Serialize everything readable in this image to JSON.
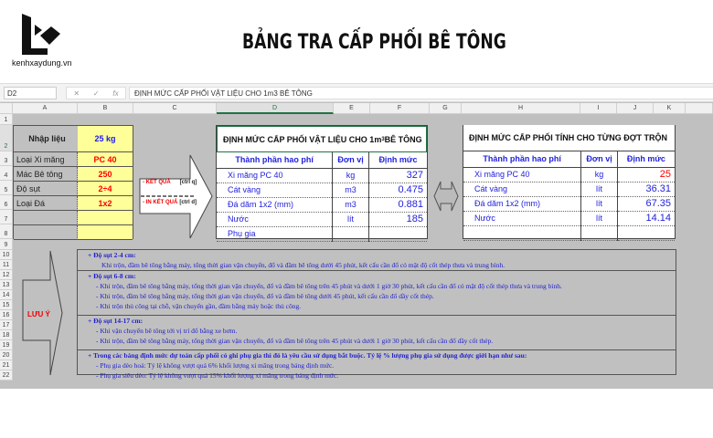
{
  "brand": {
    "site": "kenhxaydung.vn"
  },
  "page_title": "BẢNG TRA CẤP PHỐI BÊ TÔNG",
  "formula_bar": {
    "name_box": "D2",
    "cancel": "✕",
    "confirm": "✓",
    "fx": "fx",
    "formula": "ĐỊNH MỨC CẤP PHỐI VẬT LIỆU CHO 1m3 BÊ TÔNG"
  },
  "columns": [
    "A",
    "B",
    "C",
    "D",
    "E",
    "F",
    "G",
    "H",
    "I",
    "J",
    "K"
  ],
  "rows": [
    "1",
    "2",
    "3",
    "4",
    "5",
    "6",
    "7",
    "8",
    "9",
    "10",
    "11",
    "12",
    "13",
    "14",
    "15",
    "16",
    "17",
    "18",
    "19",
    "20",
    "21",
    "22"
  ],
  "inputs": {
    "header_label": "Nhập liệu",
    "header_value": "25 kg",
    "items": [
      {
        "label": "Loại Xi măng",
        "value": "PC 40"
      },
      {
        "label": "Mác Bê tông",
        "value": "250"
      },
      {
        "label": "Độ sụt",
        "value": "2÷4"
      },
      {
        "label": "Loại Đá",
        "value": "1x2"
      }
    ]
  },
  "arrow": {
    "result": "- KẾT QUẢ",
    "result_key": "[ctrl q]",
    "print": "- IN KẾT QUẢ",
    "print_key": "[ctrl d]"
  },
  "table1": {
    "title": "ĐỊNH MỨC CẤP PHỐI VẬT LIỆU CHO 1m",
    "title_sup": "3",
    "title_end": " BÊ TÔNG",
    "headers": [
      "Thành phần hao phí",
      "Đơn vị",
      "Định mức"
    ],
    "rows": [
      [
        "Xi măng PC 40",
        "kg",
        "327"
      ],
      [
        "Cát vàng",
        "m3",
        "0.475"
      ],
      [
        "Đá dăm 1x2 (mm)",
        "m3",
        "0.881"
      ],
      [
        "Nước",
        "lít",
        "185"
      ],
      [
        "Phụ gia",
        "",
        ""
      ]
    ]
  },
  "table2": {
    "title": "ĐỊNH MỨC CẤP PHỐI TÍNH CHO TỪNG ĐỢT TRỘN",
    "headers": [
      "Thành phần hao phí",
      "Đơn vị",
      "Định mức"
    ],
    "rows": [
      [
        "Xi măng PC 40",
        "kg",
        "25"
      ],
      [
        "Cát vàng",
        "lít",
        "36.31"
      ],
      [
        "Đá dăm 1x2 (mm)",
        "lít",
        "67.35"
      ],
      [
        "Nước",
        "lít",
        "14.14"
      ],
      [
        "",
        "",
        " "
      ]
    ]
  },
  "notes": {
    "label": "LƯU Ý",
    "sections": [
      {
        "heading": "+ Độ sụt 2-4 cm:",
        "lines": [
          "Khi trộn, đầm bê tông bằng máy, tổng thời gian vận chuyển, đổ và đầm bê tông dưới 45 phút, kết cấu cần đổ có mật độ cốt thép thưa và trung bình."
        ]
      },
      {
        "heading": "+ Độ sụt 6-8 cm:",
        "lines": [
          "- Khi trộn, đầm bê tông bằng máy, tổng thời gian vận chuyển, đổ và đầm bê tông trên 45 phút và dưới 1 giờ 30 phút, kết cấu cần đổ có mật độ cốt thép thưa và trung bình.",
          "- Khi trộn, đầm bê tông bằng máy, tổng thời gian vận chuyển, đổ và đầm bê tông dưới 45 phút, kết cấu cần đổ dầy cốt thép.",
          "- Khi trộn thủ công tại chỗ, vận chuyển gần, đầm bằng máy hoặc thủ công."
        ]
      },
      {
        "heading": "+ Độ sụt 14-17 cm:",
        "lines": [
          "- Khi vận chuyển bê tông tới vị trí đổ bằng xe bơm.",
          "- Khi trộn, đầm bê tông bằng máy, tổng thời gian vận chuyển, đổ và đầm bê tông trên 45 phút và dưới 1 giờ 30 phút, kết cấu cần đổ dầy cốt thép."
        ]
      },
      {
        "heading": "+ Trong các bảng định mức dự toán cấp phối có ghi phụ gia thì đó là yêu cầu sử dụng bắt buộc. Tỷ lệ % lượng phụ gia sử dụng được giới hạn như sau:",
        "lines": [
          "- Phụ gia dẻo hoá: Tỷ lệ không vượt quá 6% khối lượng xi măng trong bảng định mức.",
          "- Phụ gia siêu dẻo: Tỷ lệ không vượt quá 15% khối lượng xi măng trong bảng định mức."
        ]
      }
    ]
  },
  "colors": {
    "input_fill": "#ffff99",
    "value_red": "#ff0000",
    "text_blue": "#2222dd",
    "sheet_bg": "#c0c0c0"
  }
}
